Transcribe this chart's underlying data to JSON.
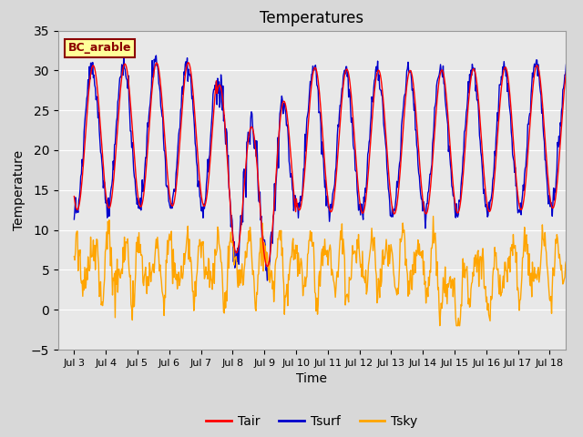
{
  "title": "Temperatures",
  "xlabel": "Time",
  "ylabel": "Temperature",
  "ylim": [
    -5,
    35
  ],
  "yticks": [
    -5,
    0,
    5,
    10,
    15,
    20,
    25,
    30,
    35
  ],
  "xtick_labels": [
    "Jul 3",
    "Jul 4",
    "Jul 5",
    "Jul 6",
    "Jul 7",
    "Jul 8",
    "Jul 9",
    "Jul 10",
    "Jul 11",
    "Jul 12",
    "Jul 13",
    "Jul 14",
    "Jul 15",
    "Jul 16",
    "Jul 17",
    "Jul 18"
  ],
  "label_box_text": "BC_arable",
  "label_box_facecolor": "#FFFF99",
  "label_box_edgecolor": "#8B0000",
  "plot_bg_color": "#E8E8E8",
  "fig_bg_color": "#D8D8D8",
  "tair_color": "#FF0000",
  "tsurf_color": "#0000CC",
  "tsky_color": "#FFA500",
  "legend_labels": [
    "Tair",
    "Tsurf",
    "Tsky"
  ],
  "n_days": 16,
  "pts_per_day": 48
}
